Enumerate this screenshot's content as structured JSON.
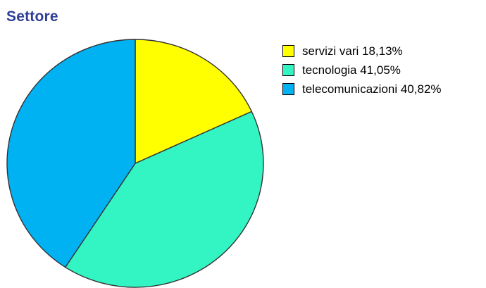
{
  "chart_data": {
    "type": "pie",
    "title": "Settore",
    "legend_position": "right",
    "slices": [
      {
        "label": "servizi vari",
        "value": 18.13,
        "display": "servizi vari 18,13%",
        "color": "#ffff00"
      },
      {
        "label": "tecnologia",
        "value": 41.05,
        "display": "tecnologia 41,05%",
        "color": "#33f5c4"
      },
      {
        "label": "telecomunicazioni",
        "value": 40.82,
        "display": "telecomunicazioni 40,82%",
        "color": "#00b2f2"
      }
    ],
    "start_angle": "12 o'clock",
    "direction": "clockwise",
    "outline_color": "#333333"
  }
}
